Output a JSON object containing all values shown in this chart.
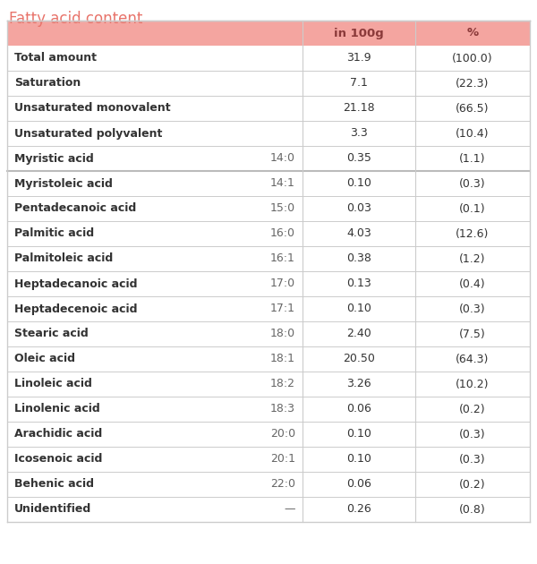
{
  "title": "Fatty acid content",
  "title_color": "#e8736a",
  "header_bg": "#f4a5a0",
  "header_text_color": "#8b3a3a",
  "text_color": "#333333",
  "border_color": "#cccccc",
  "sep_color": "#bbbbbb",
  "row_bg_white": "#ffffff",
  "row_bg_pink": "#fce8e8",
  "col_headers": [
    "in 100g",
    "%"
  ],
  "rows": [
    {
      "name": "Total amount",
      "code": "",
      "val": "31.9",
      "pct": "(100.0)",
      "group": "summary"
    },
    {
      "name": "Saturation",
      "code": "",
      "val": "7.1",
      "pct": "(22.3)",
      "group": "summary"
    },
    {
      "name": "Unsaturated monovalent",
      "code": "",
      "val": "21.18",
      "pct": "(66.5)",
      "group": "summary"
    },
    {
      "name": "Unsaturated polyvalent",
      "code": "",
      "val": "3.3",
      "pct": "(10.4)",
      "group": "summary"
    },
    {
      "name": "Myristic acid",
      "code": "14:0",
      "val": "0.35",
      "pct": "(1.1)",
      "group": "detail"
    },
    {
      "name": "Myristoleic acid",
      "code": "14:1",
      "val": "0.10",
      "pct": "(0.3)",
      "group": "detail"
    },
    {
      "name": "Pentadecanoic acid",
      "code": "15:0",
      "val": "0.03",
      "pct": "(0.1)",
      "group": "detail"
    },
    {
      "name": "Palmitic acid",
      "code": "16:0",
      "val": "4.03",
      "pct": "(12.6)",
      "group": "detail"
    },
    {
      "name": "Palmitoleic acid",
      "code": "16:1",
      "val": "0.38",
      "pct": "(1.2)",
      "group": "detail"
    },
    {
      "name": "Heptadecanoic acid",
      "code": "17:0",
      "val": "0.13",
      "pct": "(0.4)",
      "group": "detail"
    },
    {
      "name": "Heptadecenoic acid",
      "code": "17:1",
      "val": "0.10",
      "pct": "(0.3)",
      "group": "detail"
    },
    {
      "name": "Stearic acid",
      "code": "18:0",
      "val": "2.40",
      "pct": "(7.5)",
      "group": "detail"
    },
    {
      "name": "Oleic acid",
      "code": "18:1",
      "val": "20.50",
      "pct": "(64.3)",
      "group": "detail"
    },
    {
      "name": "Linoleic acid",
      "code": "18:2",
      "val": "3.26",
      "pct": "(10.2)",
      "group": "detail"
    },
    {
      "name": "Linolenic acid",
      "code": "18:3",
      "val": "0.06",
      "pct": "(0.2)",
      "group": "detail"
    },
    {
      "name": "Arachidic acid",
      "code": "20:0",
      "val": "0.10",
      "pct": "(0.3)",
      "group": "detail"
    },
    {
      "name": "Icosenoic acid",
      "code": "20:1",
      "val": "0.10",
      "pct": "(0.3)",
      "group": "detail"
    },
    {
      "name": "Behenic acid",
      "code": "22:0",
      "val": "0.06",
      "pct": "(0.2)",
      "group": "detail"
    },
    {
      "name": "Unidentified",
      "code": "—",
      "val": "0.26",
      "pct": "(0.8)",
      "group": "detail"
    }
  ]
}
